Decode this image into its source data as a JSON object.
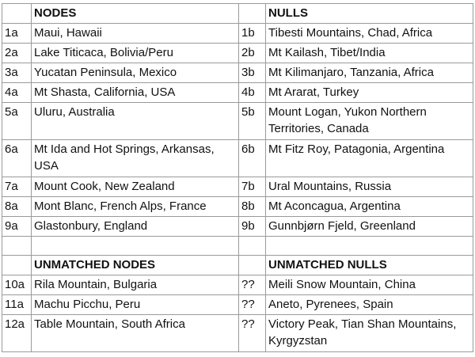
{
  "header": {
    "left": "NODES",
    "right": "NULLS"
  },
  "rows": [
    {
      "id_a": "1a",
      "node": "Maui, Hawaii",
      "id_b": "1b",
      "null": "Tibesti Mountains, Chad, Africa"
    },
    {
      "id_a": "2a",
      "node": "Lake Titicaca, Bolivia/Peru",
      "id_b": "2b",
      "null": "Mt Kailash, Tibet/India"
    },
    {
      "id_a": "3a",
      "node": "Yucatan Peninsula, Mexico",
      "id_b": "3b",
      "null": "Mt Kilimanjaro, Tanzania, Africa"
    },
    {
      "id_a": "4a",
      "node": "Mt Shasta, California, USA",
      "id_b": "4b",
      "null": "Mt Ararat, Turkey"
    },
    {
      "id_a": "5a",
      "node": "Uluru, Australia",
      "id_b": "5b",
      "null": "Mount Logan, Yukon Northern Territories, Canada"
    },
    {
      "id_a": "6a",
      "node": "Mt Ida and Hot Springs, Arkansas, USA",
      "id_b": "6b",
      "null": "Mt Fitz Roy, Patagonia, Argentina"
    },
    {
      "id_a": "7a",
      "node": "Mount Cook, New Zealand",
      "id_b": "7b",
      "null": "Ural Mountains, Russia"
    },
    {
      "id_a": "8a",
      "node": "Mont Blanc, French Alps, France",
      "id_b": "8b",
      "null": "Mt Aconcagua, Argentina"
    },
    {
      "id_a": "9a",
      "node": "Glastonbury, England",
      "id_b": "9b",
      "null": "Gunnbjørn Fjeld, Greenland"
    }
  ],
  "unmatched_header": {
    "left": "UNMATCHED NODES",
    "right": "UNMATCHED NULLS"
  },
  "unmatched_rows": [
    {
      "id_a": "10a",
      "node": "Rila Mountain, Bulgaria",
      "id_b": "??",
      "null": "Meili Snow Mountain, China"
    },
    {
      "id_a": "11a",
      "node": "Machu Picchu, Peru",
      "id_b": "??",
      "null": "Aneto, Pyrenees, Spain"
    },
    {
      "id_a": "12a",
      "node": "Table Mountain, South Africa",
      "id_b": "??",
      "null": "Victory Peak, Tian Shan Mountains, Kyrgyzstan"
    }
  ]
}
